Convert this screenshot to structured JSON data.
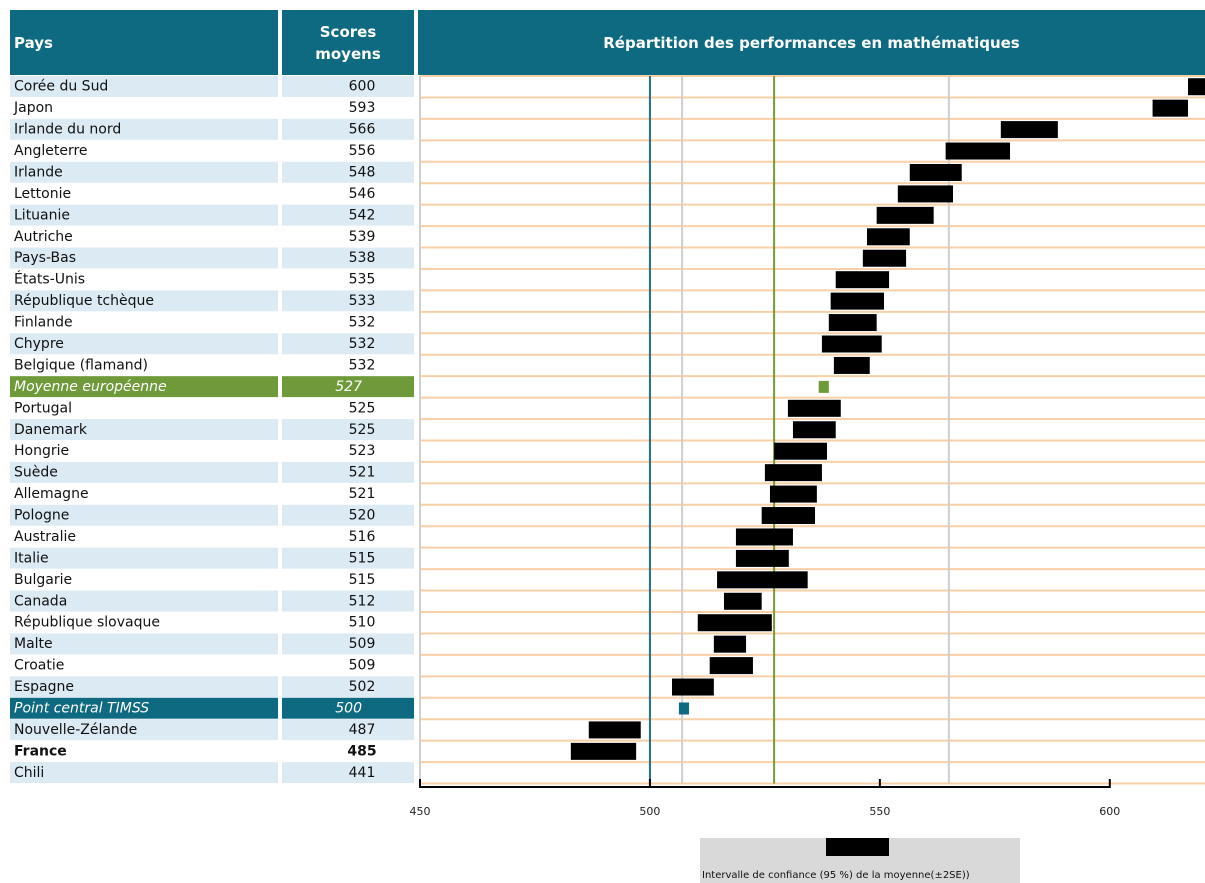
{
  "chart_data": {
    "type": "interval",
    "title": "Répartition des performances en mathématiques",
    "column_headers": [
      "Pays",
      "Scores moyens"
    ],
    "categories": [
      "Corée du Sud",
      "Japon",
      "Irlande du nord",
      "Angleterre",
      "Irlande",
      "Lettonie",
      "Lituanie",
      "Autriche",
      "Pays-Bas",
      "États-Unis",
      "République tchèque",
      "Finlande",
      "Chypre",
      "Belgique (flamand)",
      "Moyenne européenne",
      "Portugal",
      "Danemark",
      "Hongrie",
      "Suède",
      "Allemagne",
      "Pologne",
      "Australie",
      "Italie",
      "Bulgarie",
      "Canada",
      "République slovaque",
      "Malte",
      "Croatie",
      "Espagne",
      "Point central TIMSS",
      "Nouvelle-Zélande",
      "France",
      "Chili"
    ],
    "values": [
      600,
      593,
      566,
      556,
      548,
      546,
      542,
      539,
      538,
      535,
      533,
      532,
      532,
      532,
      527,
      525,
      525,
      523,
      521,
      521,
      520,
      516,
      515,
      515,
      512,
      510,
      509,
      509,
      502,
      500,
      487,
      485,
      441
    ],
    "low": [
      617.0,
      609.3,
      576.3,
      564.3,
      556.5,
      553.9,
      549.3,
      547.2,
      546.3,
      540.4,
      539.3,
      538.9,
      537.4,
      540.0,
      536.7,
      530.0,
      531.1,
      527.0,
      525.0,
      526.1,
      524.3,
      518.7,
      518.7,
      514.6,
      516.1,
      510.4,
      513.9,
      513.0,
      504.8,
      506.3,
      486.7,
      482.8,
      null
    ],
    "high": [
      620.7,
      617.0,
      588.7,
      578.3,
      567.8,
      565.9,
      561.7,
      556.5,
      555.7,
      552.0,
      550.9,
      549.3,
      550.4,
      547.8,
      538.9,
      541.5,
      540.4,
      538.5,
      537.4,
      536.3,
      535.9,
      531.1,
      530.2,
      534.3,
      524.3,
      526.5,
      520.9,
      522.4,
      513.9,
      508.5,
      498.0,
      497.0,
      null
    ],
    "color": "#000000",
    "highlight_rows": [
      {
        "index": 14,
        "color": "#6f9a3a"
      },
      {
        "index": 29,
        "color": "#0e6a80"
      }
    ],
    "bold_rows": [
      31
    ],
    "reference_lines": [
      {
        "value": 500,
        "color": "#1f6f8b"
      },
      {
        "value": 527,
        "color": "#7a9a2e"
      }
    ],
    "grid_lines": [
      507,
      565
    ],
    "xlim": [
      450,
      620.7
    ],
    "xticks": [
      450,
      500,
      550,
      600
    ],
    "legend": "Intervalle  de confiance (95 %) de la moyenne(±2SE))"
  }
}
